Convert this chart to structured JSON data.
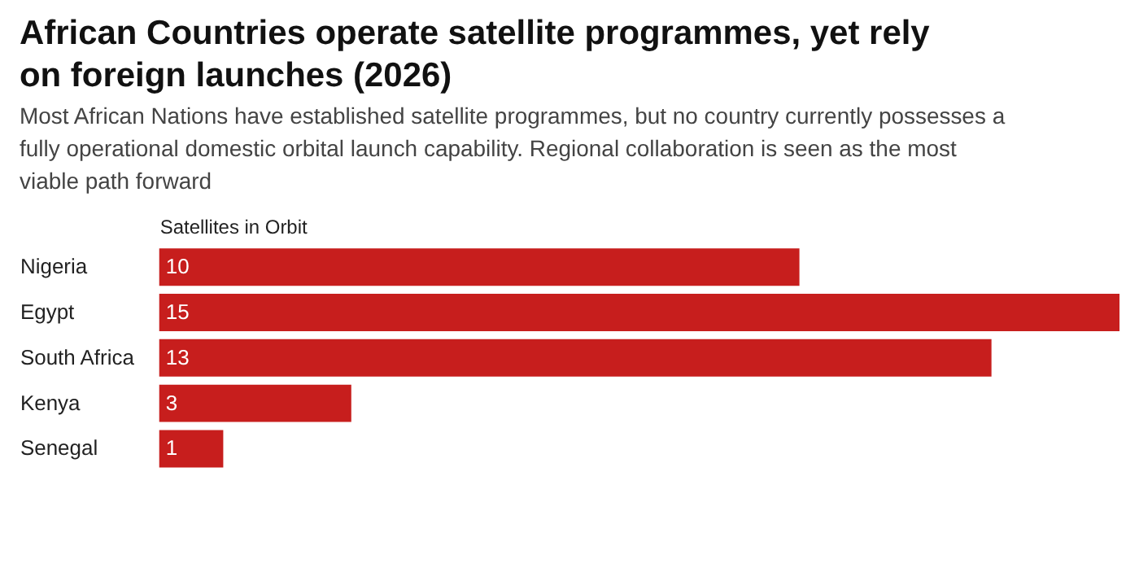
{
  "chart_data": {
    "type": "bar",
    "orientation": "horizontal",
    "title": "African Countries operate satellite programmes, yet rely on foreign launches (2026)",
    "subtitle": "Most African Nations have established satellite programmes, but no country currently possesses a fully operational domestic orbital launch capability. Regional collaboration is seen as the most viable path forward",
    "xlabel": "Satellites in Orbit",
    "categories": [
      "Nigeria",
      "Egypt",
      "South Africa",
      "Kenya",
      "Senegal"
    ],
    "values": [
      10,
      15,
      13,
      3,
      1
    ],
    "color": "#c71e1d",
    "data_labels": true,
    "grid": false
  }
}
